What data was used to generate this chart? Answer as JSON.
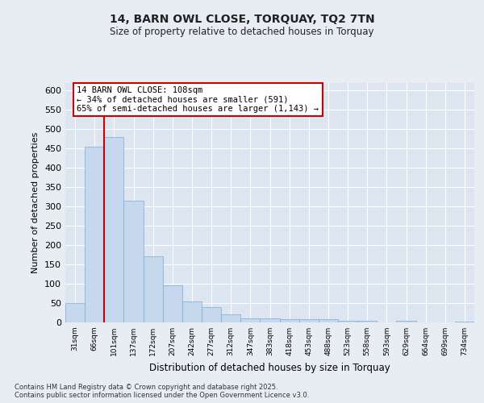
{
  "title": "14, BARN OWL CLOSE, TORQUAY, TQ2 7TN",
  "subtitle": "Size of property relative to detached houses in Torquay",
  "xlabel": "Distribution of detached houses by size in Torquay",
  "ylabel": "Number of detached properties",
  "bar_color": "#c5d8ee",
  "bar_edge_color": "#7aadd4",
  "background_color": "#e8edf4",
  "plot_bg_color": "#dce5f0",
  "grid_color": "#ffffff",
  "annotation_text": "14 BARN OWL CLOSE: 108sqm\n← 34% of detached houses are smaller (591)\n65% of semi-detached houses are larger (1,143) →",
  "vline_x": 1.5,
  "vline_color": "#cc0000",
  "bins": [
    "31sqm",
    "66sqm",
    "101sqm",
    "137sqm",
    "172sqm",
    "207sqm",
    "242sqm",
    "277sqm",
    "312sqm",
    "347sqm",
    "383sqm",
    "418sqm",
    "453sqm",
    "488sqm",
    "523sqm",
    "558sqm",
    "593sqm",
    "629sqm",
    "664sqm",
    "699sqm",
    "734sqm"
  ],
  "values": [
    50,
    455,
    480,
    315,
    170,
    95,
    55,
    40,
    20,
    10,
    10,
    8,
    8,
    8,
    5,
    5,
    0,
    5,
    0,
    0,
    2
  ],
  "ylim": [
    0,
    620
  ],
  "yticks": [
    0,
    50,
    100,
    150,
    200,
    250,
    300,
    350,
    400,
    450,
    500,
    550,
    600
  ],
  "footnote": "Contains HM Land Registry data © Crown copyright and database right 2025.\nContains public sector information licensed under the Open Government Licence v3.0.",
  "annotation_box_color": "#ffffff",
  "annotation_box_edge": "#cc0000"
}
